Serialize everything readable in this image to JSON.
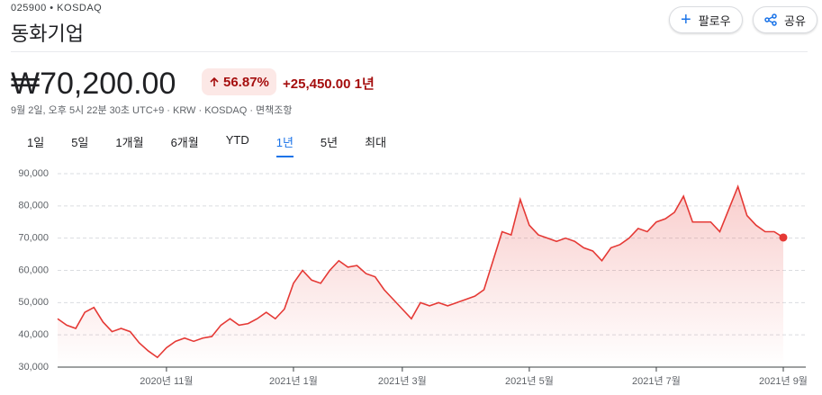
{
  "header": {
    "ticker": "025900 • KOSDAQ",
    "name": "동화기업",
    "price": "₩70,200.00",
    "change_pct": "56.87%",
    "change": "+25,450.00",
    "change_period": "1년",
    "timestamp": "9월 2일, 오후 5시 22분 30초 UTC+9 · KRW · KOSDAQ · 면책조항",
    "follow": "팔로우",
    "share": "공유"
  },
  "tabs": {
    "items": [
      "1일",
      "5일",
      "1개월",
      "6개월",
      "YTD",
      "1년",
      "5년",
      "최대"
    ],
    "active": "1년"
  },
  "chart_data": {
    "type": "line",
    "categories": [
      null,
      null,
      null,
      null,
      null,
      null,
      null,
      null,
      null,
      null,
      null,
      null,
      "2020년 11월",
      null,
      null,
      null,
      null,
      null,
      null,
      null,
      null,
      null,
      null,
      null,
      null,
      null,
      "2021년 1월",
      null,
      null,
      null,
      null,
      null,
      null,
      null,
      null,
      null,
      null,
      null,
      "2021년 3월",
      null,
      null,
      null,
      null,
      null,
      null,
      null,
      null,
      null,
      null,
      null,
      null,
      null,
      "2021년 5월",
      null,
      null,
      null,
      null,
      null,
      null,
      null,
      null,
      null,
      null,
      null,
      null,
      null,
      "2021년 7월",
      null,
      null,
      null,
      null,
      null,
      null,
      null,
      null,
      null,
      null,
      null,
      null,
      null,
      "2021년 9월"
    ],
    "series": [
      {
        "name": "동화기업",
        "color": "#e53935",
        "values": [
          45000,
          43000,
          42000,
          47000,
          48500,
          44000,
          41000,
          42000,
          41000,
          37500,
          35000,
          33000,
          36000,
          38000,
          39000,
          38000,
          39000,
          39500,
          43000,
          45000,
          43000,
          43500,
          45000,
          47000,
          45000,
          48000,
          56000,
          60000,
          57000,
          56000,
          60000,
          63000,
          61000,
          61500,
          59000,
          58000,
          54000,
          51000,
          48000,
          45000,
          50000,
          49000,
          50000,
          49000,
          50000,
          51000,
          52000,
          54000,
          63000,
          72000,
          71000,
          82000,
          74000,
          71000,
          70000,
          69000,
          70000,
          69000,
          67000,
          66000,
          63000,
          67000,
          68000,
          70000,
          73000,
          72000,
          75000,
          76000,
          78000,
          83000,
          75000,
          75000,
          75000,
          72000,
          79000,
          86000,
          77000,
          74000,
          72000,
          72000,
          70200
        ]
      }
    ],
    "ylim": [
      30000,
      90000
    ],
    "yticks": [
      {
        "value": 30000,
        "label": "30,000"
      },
      {
        "value": 40000,
        "label": "40,000"
      },
      {
        "value": 50000,
        "label": "50,000"
      },
      {
        "value": 60000,
        "label": "60,000"
      },
      {
        "value": 70000,
        "label": "70,000"
      },
      {
        "value": 80000,
        "label": "80,000"
      },
      {
        "value": 90000,
        "label": "90,000"
      }
    ],
    "grid": true
  }
}
